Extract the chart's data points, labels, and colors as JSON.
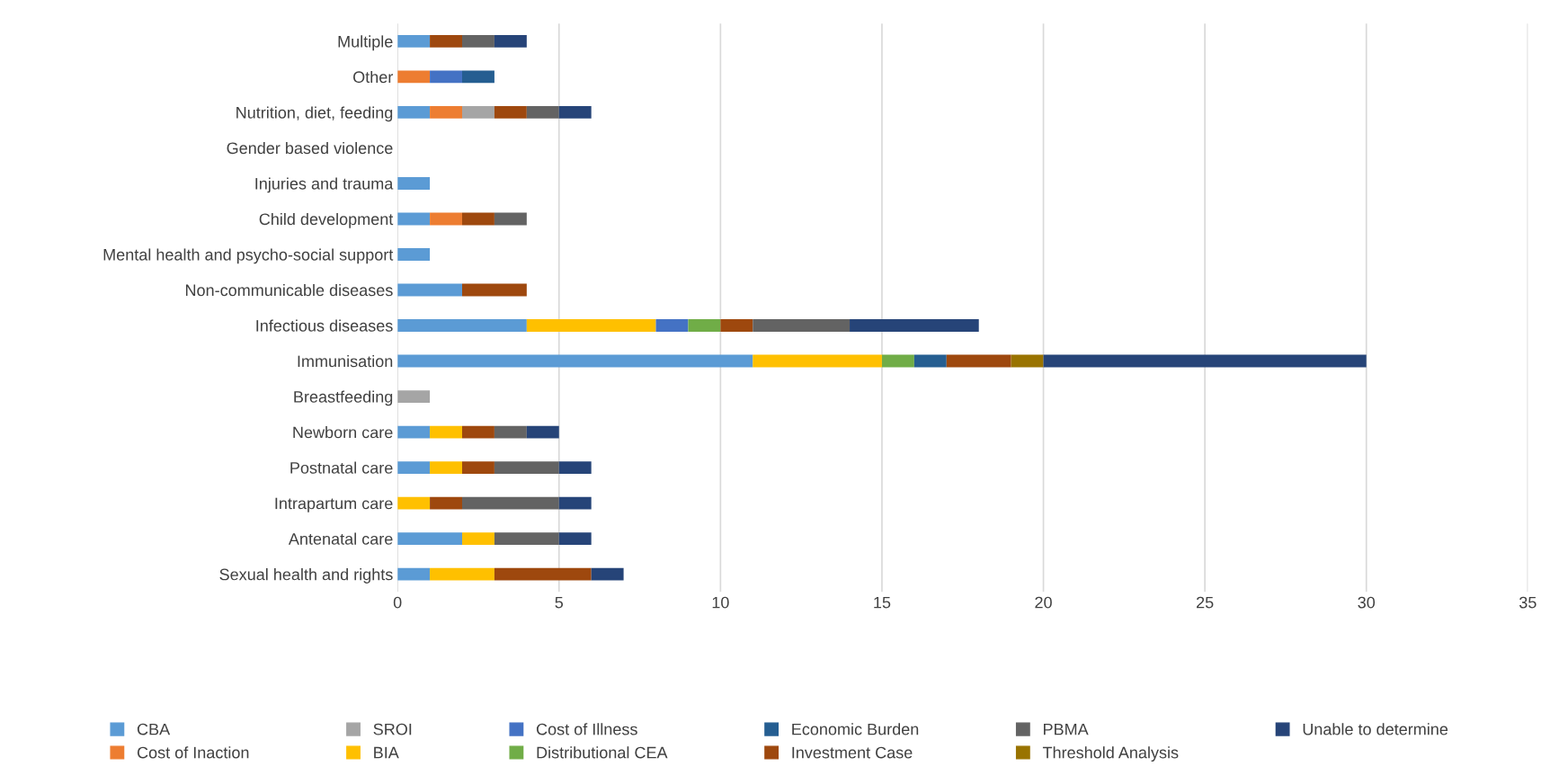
{
  "chart_data": {
    "type": "bar",
    "orientation": "horizontal",
    "stacked": true,
    "grid": "x",
    "legend": "bottom",
    "categories": [
      "Multiple",
      "Other",
      "Nutrition, diet, feeding",
      "Gender based violence",
      "Injuries and trauma",
      "Child development",
      "Mental health and psycho-social support",
      "Non-communicable diseases",
      "Infectious diseases",
      "Immunisation",
      "Breastfeeding",
      "Newborn care",
      "Postnatal care",
      "Intrapartum care",
      "Antenatal care",
      "Sexual health and rights"
    ],
    "xlim": [
      0,
      35
    ],
    "xticks": [
      0,
      5,
      10,
      15,
      20,
      25,
      30,
      35
    ],
    "series": [
      {
        "name": "CBA",
        "color": "#5b9bd5",
        "values": [
          1,
          0,
          1,
          0,
          1,
          1,
          1,
          2,
          4,
          11,
          0,
          1,
          1,
          0,
          2,
          1
        ]
      },
      {
        "name": "Cost of Inaction",
        "color": "#ed7d31",
        "values": [
          0,
          1,
          1,
          0,
          0,
          1,
          0,
          0,
          0,
          0,
          0,
          0,
          0,
          0,
          0,
          0
        ]
      },
      {
        "name": "SROI",
        "color": "#a5a5a5",
        "values": [
          0,
          0,
          1,
          0,
          0,
          0,
          0,
          0,
          0,
          0,
          1,
          0,
          0,
          0,
          0,
          0
        ]
      },
      {
        "name": "BIA",
        "color": "#ffc000",
        "values": [
          0,
          0,
          0,
          0,
          0,
          0,
          0,
          0,
          4,
          4,
          0,
          1,
          1,
          1,
          1,
          2
        ]
      },
      {
        "name": "Cost of Illness",
        "color": "#4472c4",
        "values": [
          0,
          1,
          0,
          0,
          0,
          0,
          0,
          0,
          1,
          0,
          0,
          0,
          0,
          0,
          0,
          0
        ]
      },
      {
        "name": "Distributional CEA",
        "color": "#70ad47",
        "values": [
          0,
          0,
          0,
          0,
          0,
          0,
          0,
          0,
          1,
          1,
          0,
          0,
          0,
          0,
          0,
          0
        ]
      },
      {
        "name": "Economic Burden",
        "color": "#255e91",
        "values": [
          0,
          1,
          0,
          0,
          0,
          0,
          0,
          0,
          0,
          1,
          0,
          0,
          0,
          0,
          0,
          0
        ]
      },
      {
        "name": "Investment Case",
        "color": "#9e480e",
        "values": [
          1,
          0,
          1,
          0,
          0,
          1,
          0,
          2,
          1,
          2,
          0,
          1,
          1,
          1,
          0,
          3
        ]
      },
      {
        "name": "PBMA",
        "color": "#636363",
        "values": [
          1,
          0,
          1,
          0,
          0,
          1,
          0,
          0,
          3,
          0,
          0,
          1,
          2,
          3,
          2,
          0
        ]
      },
      {
        "name": "Threshold Analysis",
        "color": "#997300",
        "values": [
          0,
          0,
          0,
          0,
          0,
          0,
          0,
          0,
          0,
          1,
          0,
          0,
          0,
          0,
          0,
          0
        ]
      },
      {
        "name": "Unable to determine",
        "color": "#264478",
        "values": [
          1,
          0,
          1,
          0,
          0,
          0,
          0,
          0,
          4,
          10,
          0,
          1,
          1,
          1,
          1,
          1
        ]
      }
    ]
  }
}
